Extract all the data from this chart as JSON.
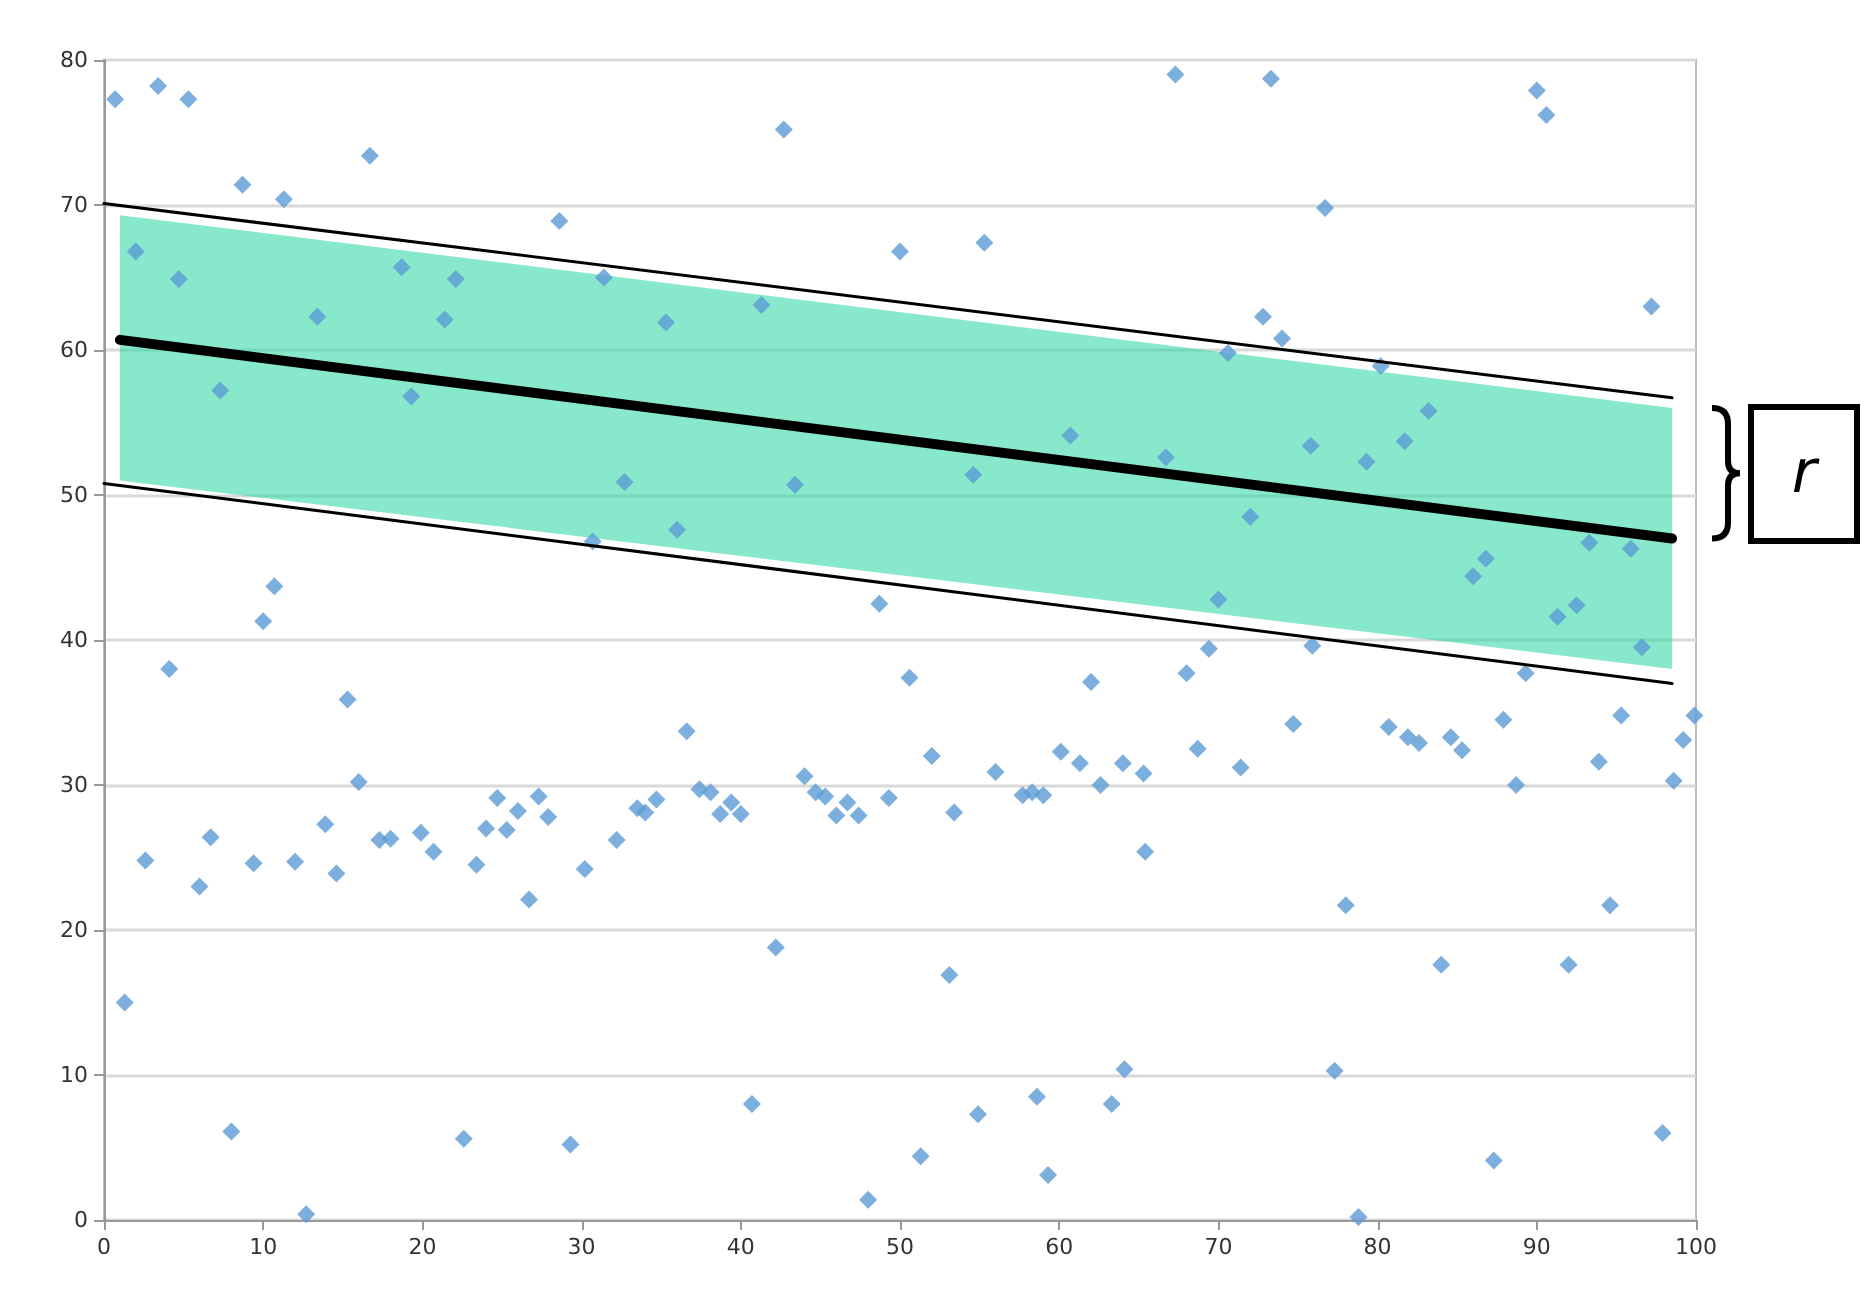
{
  "chart_data": {
    "type": "scatter",
    "xlim": [
      0,
      100
    ],
    "xticks": [
      0,
      10,
      20,
      30,
      40,
      50,
      60,
      70,
      80,
      90,
      100
    ],
    "ylim": [
      0,
      80
    ],
    "yticks": [
      0,
      10,
      20,
      30,
      40,
      50,
      60,
      70,
      80
    ],
    "grid": "y",
    "marker": "diamond",
    "annotations": [
      "r"
    ],
    "series": [
      {
        "color": "#5b9bd5",
        "x": [
          0.7,
          3.4,
          5.3,
          16.7,
          8.7,
          11.3,
          28.6,
          2.0,
          4.7,
          18.7,
          22.1,
          31.4,
          13.4,
          21.4,
          7.3,
          19.3,
          32.7,
          30.7,
          10.7,
          10.0,
          42.7,
          50.0,
          55.3,
          35.3,
          41.3,
          60.7,
          43.4,
          54.6,
          36.0,
          48.7,
          67.3,
          73.3,
          90.0,
          90.6,
          76.7,
          97.2,
          72.8,
          74.0,
          70.6,
          80.2,
          83.2,
          75.8,
          81.7,
          79.3,
          66.7,
          72.0,
          93.3,
          95.9,
          86.8,
          86.0,
          70.0,
          92.5,
          91.3,
          96.6,
          69.4,
          75.9,
          68.0,
          89.3,
          4.1,
          15.3,
          16.0,
          2.6,
          6.0,
          6.7,
          9.4,
          12.0,
          13.9,
          14.6,
          17.3,
          18.0,
          19.9,
          20.7,
          23.4,
          24.0,
          24.7,
          25.3,
          26.0,
          26.7,
          27.3,
          27.9,
          30.2,
          32.2,
          33.5,
          1.3,
          8.0,
          22.6,
          29.3,
          12.7,
          50.6,
          62.0,
          36.6,
          52.0,
          60.1,
          61.3,
          64.0,
          65.3,
          56.0,
          44.0,
          62.6,
          37.4,
          38.1,
          44.7,
          45.3,
          49.3,
          57.7,
          58.3,
          59.0,
          34.0,
          34.7,
          39.4,
          38.7,
          40.0,
          46.7,
          46.0,
          47.4,
          53.4,
          65.4,
          42.2,
          53.1,
          64.1,
          40.7,
          58.6,
          63.3,
          54.9,
          51.3,
          59.3,
          48.0,
          74.7,
          80.7,
          81.9,
          82.6,
          84.6,
          85.3,
          87.9,
          88.7,
          68.7,
          71.4,
          93.9,
          95.3,
          99.2,
          99.9,
          98.6,
          78.0,
          94.6,
          84.0,
          92.0,
          77.3,
          97.9,
          87.3,
          78.8
        ],
        "values": [
          77.3,
          78.2,
          77.3,
          73.4,
          71.4,
          70.4,
          68.9,
          66.8,
          64.9,
          65.7,
          64.9,
          65.0,
          62.3,
          62.1,
          57.2,
          56.8,
          50.9,
          46.8,
          43.7,
          41.3,
          75.2,
          66.8,
          67.4,
          61.9,
          63.1,
          54.1,
          50.7,
          51.4,
          47.6,
          42.5,
          79.0,
          78.7,
          77.9,
          76.2,
          69.8,
          63.0,
          62.3,
          60.8,
          59.8,
          58.9,
          55.8,
          53.4,
          53.7,
          52.3,
          52.6,
          48.5,
          46.7,
          46.3,
          45.6,
          44.4,
          42.8,
          42.4,
          41.6,
          39.5,
          39.4,
          39.6,
          37.7,
          37.7,
          38.0,
          35.9,
          30.2,
          24.8,
          23.0,
          26.4,
          24.6,
          24.7,
          27.3,
          23.9,
          26.2,
          26.3,
          26.7,
          25.4,
          24.5,
          27.0,
          29.1,
          26.9,
          28.2,
          22.1,
          29.2,
          27.8,
          24.2,
          26.2,
          28.4,
          15.0,
          6.1,
          5.6,
          5.2,
          0.4,
          37.4,
          37.1,
          33.7,
          32.0,
          32.3,
          31.5,
          31.5,
          30.8,
          30.9,
          30.6,
          30.0,
          29.7,
          29.5,
          29.5,
          29.2,
          29.1,
          29.3,
          29.5,
          29.3,
          28.1,
          29.0,
          28.8,
          28.0,
          28.0,
          28.8,
          27.9,
          27.9,
          28.1,
          25.4,
          18.8,
          16.9,
          10.4,
          8.0,
          8.5,
          8.0,
          7.3,
          4.4,
          3.1,
          1.4,
          34.2,
          34.0,
          33.3,
          32.9,
          33.3,
          32.4,
          34.5,
          30.0,
          32.5,
          31.2,
          31.6,
          34.8,
          33.1,
          34.8,
          30.3,
          21.7,
          21.7,
          17.6,
          17.6,
          10.3,
          6.0,
          4.1,
          0.2
        ]
      },
      {
        "type": "line",
        "color": "#000000",
        "marker": "none",
        "x": [
          1,
          98.5
        ],
        "values": [
          60.7,
          47.0
        ],
        "lower": [
          51.0,
          38.0
        ],
        "upper": [
          69.3,
          56.0
        ]
      },
      {
        "type": "line",
        "color": "#000000",
        "marker": "none",
        "x": [
          0,
          98.5
        ],
        "values": [
          70.1,
          56.7
        ]
      },
      {
        "type": "line",
        "color": "#000000",
        "marker": "none",
        "x": [
          0,
          98.5
        ],
        "values": [
          50.8,
          37.0
        ]
      }
    ]
  }
}
